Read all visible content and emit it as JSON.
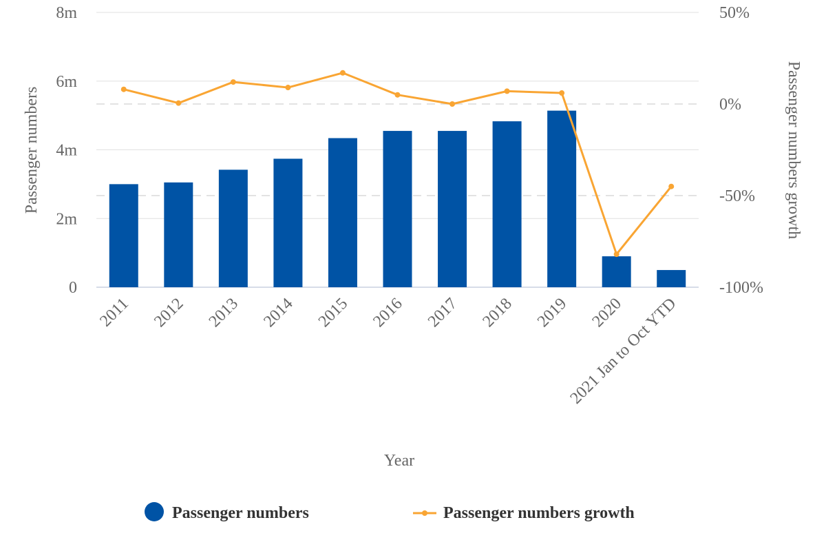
{
  "chart_data": {
    "type": "bar",
    "categories": [
      "2011",
      "2012",
      "2013",
      "2014",
      "2015",
      "2016",
      "2017",
      "2018",
      "2019",
      "2020",
      "2021 Jan to Oct YTD"
    ],
    "series": [
      {
        "name": "Passenger numbers",
        "type": "bar",
        "axis": "left",
        "color": "#0053a5",
        "values": [
          3.0,
          3.05,
          3.42,
          3.74,
          4.34,
          4.55,
          4.55,
          4.83,
          5.14,
          0.9,
          0.5
        ]
      },
      {
        "name": "Passenger numbers growth",
        "type": "line",
        "axis": "right",
        "color": "#f9a533",
        "values": [
          8,
          0.5,
          12,
          9,
          17,
          5,
          0,
          7,
          6,
          -82,
          -45
        ]
      }
    ],
    "xlabel": "Year",
    "ylabel_left": "Passenger numbers",
    "ylabel_right": "Passenger numbers growth",
    "ylim_left": [
      0,
      8
    ],
    "ylim_right": [
      -100,
      50
    ],
    "yticks_left": [
      "0",
      "2m",
      "4m",
      "6m",
      "8m"
    ],
    "yticks_right": [
      "-100%",
      "-50%",
      "0%",
      "50%"
    ],
    "legend_position": "bottom",
    "grid": true
  }
}
